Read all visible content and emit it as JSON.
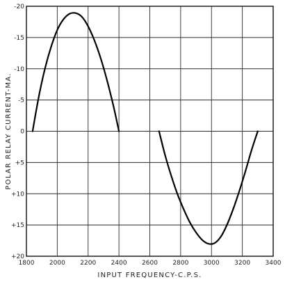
{
  "chart_data": {
    "type": "line",
    "title": "",
    "xlabel": "INPUT FREQUENCY-C.P.S.",
    "ylabel": "POLAR RELAY CURRENT-MA.",
    "xlim": [
      1800,
      3400
    ],
    "ylim": [
      -20,
      20
    ],
    "y_inverted": true,
    "grid": true,
    "x_ticks": [
      1800,
      2000,
      2200,
      2400,
      2600,
      2800,
      3000,
      3200,
      3400
    ],
    "x_tick_labels": [
      "1800",
      "2000",
      "2200",
      "2400",
      "2600",
      "2800",
      "3000",
      "3200",
      "3400"
    ],
    "y_ticks": [
      -20,
      -15,
      -10,
      -5,
      0,
      5,
      10,
      15,
      20
    ],
    "y_tick_labels": [
      "-20",
      "-15",
      "-10",
      "-5",
      "0",
      "+5",
      "+10",
      "+15",
      "+20"
    ],
    "series": [
      {
        "x": [
          1840,
          1880,
          1920,
          1960,
          2000,
          2040,
          2080,
          2120,
          2160,
          2200,
          2240,
          2280,
          2320,
          2360,
          2380,
          2400
        ],
        "y": [
          0,
          -5.5,
          -10,
          -13.5,
          -16.2,
          -17.9,
          -18.8,
          -18.9,
          -18.3,
          -16.8,
          -14.6,
          -11.8,
          -8.4,
          -4.5,
          -2.3,
          0
        ]
      },
      {
        "x": [
          2660,
          2700,
          2740,
          2780,
          2820,
          2860,
          2900,
          2940,
          2980,
          3020,
          3060,
          3100,
          3140,
          3180,
          3220,
          3260,
          3300
        ],
        "y": [
          0,
          3.9,
          7.2,
          10.1,
          12.5,
          14.6,
          16.2,
          17.4,
          18.0,
          17.9,
          16.9,
          15.0,
          12.5,
          9.6,
          6.4,
          3.0,
          0
        ]
      }
    ]
  }
}
